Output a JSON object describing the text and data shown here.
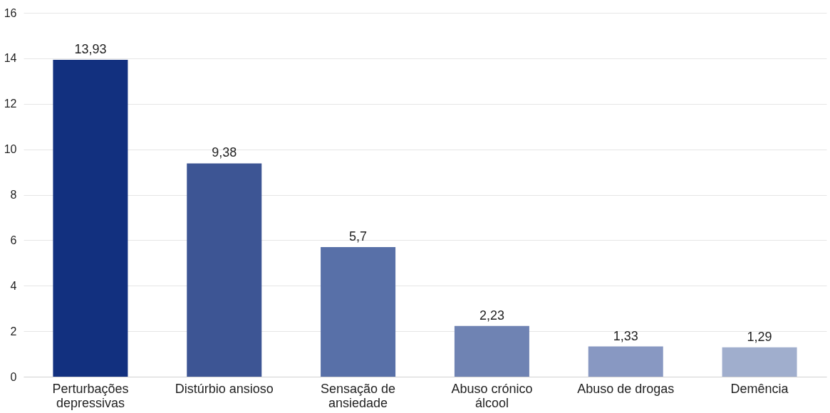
{
  "chart_data": {
    "type": "bar",
    "categories": [
      "Perturbações depressivas",
      "Distúrbio ansioso",
      "Sensação de ansiedade",
      "Abuso crónico álcool",
      "Abuso de drogas",
      "Demência"
    ],
    "values": [
      13.93,
      9.38,
      5.7,
      2.23,
      1.33,
      1.29
    ],
    "value_labels": [
      "13,93",
      "9,38",
      "5,7",
      "2,23",
      "1,33",
      "1,29"
    ],
    "colors": [
      "#12307f",
      "#3d5594",
      "#5870a8",
      "#6f83b3",
      "#8898c2",
      "#a0aecd"
    ],
    "ylim": [
      0,
      16
    ],
    "yticks": [
      0,
      2,
      4,
      6,
      8,
      10,
      12,
      14,
      16
    ],
    "grid": "y"
  }
}
